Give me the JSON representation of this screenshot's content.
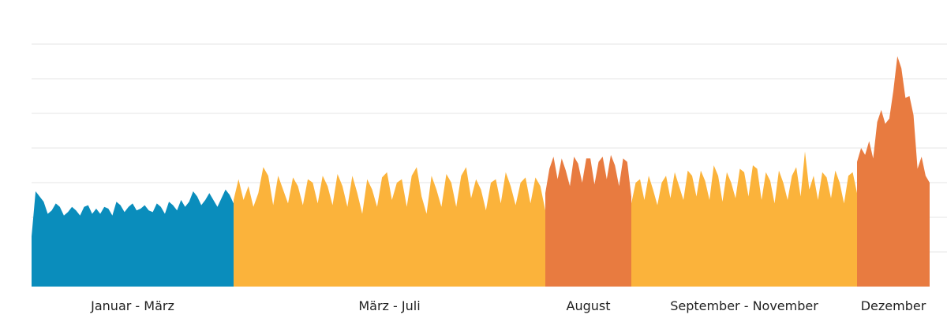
{
  "chart_data": {
    "type": "area",
    "title": "",
    "xlabel": "",
    "ylabel": "",
    "ylim": [
      0,
      7
    ],
    "grid": true,
    "legend": "none",
    "y_gridlines": [
      1,
      2,
      3,
      4,
      5,
      6,
      7
    ],
    "series": [
      {
        "period_label": "Januar - März",
        "color": "#0a8dbc",
        "values": [
          1.45,
          2.75,
          2.6,
          2.45,
          2.1,
          2.2,
          2.4,
          2.3,
          2.05,
          2.15,
          2.3,
          2.2,
          2.05,
          2.3,
          2.35,
          2.1,
          2.25,
          2.1,
          2.3,
          2.25,
          2.05,
          2.45,
          2.35,
          2.15,
          2.3,
          2.4,
          2.2,
          2.25,
          2.35,
          2.2,
          2.15,
          2.4,
          2.3,
          2.1,
          2.45,
          2.35,
          2.2,
          2.5,
          2.3,
          2.45,
          2.75,
          2.6,
          2.35,
          2.5,
          2.7,
          2.5,
          2.3,
          2.55,
          2.8,
          2.65,
          2.4
        ]
      },
      {
        "period_label": "März - Juli",
        "color": "#fbb33b",
        "values": [
          2.5,
          3.1,
          2.5,
          2.9,
          2.3,
          2.7,
          3.45,
          3.2,
          2.35,
          3.2,
          2.8,
          2.4,
          3.15,
          2.9,
          2.35,
          3.1,
          3.0,
          2.4,
          3.2,
          2.9,
          2.35,
          3.25,
          2.9,
          2.3,
          3.2,
          2.7,
          2.1,
          3.1,
          2.8,
          2.3,
          3.15,
          3.3,
          2.5,
          3.0,
          3.1,
          2.3,
          3.2,
          3.45,
          2.6,
          2.1,
          3.2,
          2.8,
          2.3,
          3.25,
          3.0,
          2.3,
          3.2,
          3.45,
          2.55,
          3.1,
          2.8,
          2.2,
          3.0,
          3.1,
          2.4,
          3.3,
          2.9,
          2.35,
          3.0,
          3.15,
          2.4,
          3.15,
          2.9,
          2.2
        ]
      },
      {
        "period_label": "August",
        "color": "#e87b40",
        "values": [
          2.7,
          3.4,
          3.75,
          3.1,
          3.7,
          3.35,
          2.9,
          3.75,
          3.55,
          3.0,
          3.7,
          3.7,
          2.95,
          3.6,
          3.75,
          3.1,
          3.8,
          3.5,
          2.9,
          3.7,
          3.6,
          2.6
        ]
      },
      {
        "period_label": "September - November",
        "color": "#fbb33b",
        "values": [
          2.4,
          3.0,
          3.1,
          2.5,
          3.2,
          2.8,
          2.35,
          3.0,
          3.2,
          2.55,
          3.3,
          2.9,
          2.5,
          3.35,
          3.2,
          2.6,
          3.35,
          3.05,
          2.5,
          3.5,
          3.2,
          2.45,
          3.3,
          3.0,
          2.55,
          3.4,
          3.3,
          2.6,
          3.5,
          3.4,
          2.5,
          3.3,
          3.05,
          2.4,
          3.35,
          3.0,
          2.5,
          3.2,
          3.45,
          2.6,
          3.9,
          2.8,
          3.2,
          2.5,
          3.3,
          3.15,
          2.55,
          3.35,
          3.0,
          2.4,
          3.2,
          3.3,
          2.7
        ]
      },
      {
        "period_label": "Dezember",
        "color": "#e87b40",
        "values": [
          3.6,
          4.0,
          3.8,
          4.2,
          3.7,
          4.75,
          5.1,
          4.7,
          4.85,
          5.65,
          6.65,
          6.3,
          5.45,
          5.5,
          4.95,
          3.4,
          3.75,
          3.2,
          3.0
        ]
      }
    ]
  }
}
